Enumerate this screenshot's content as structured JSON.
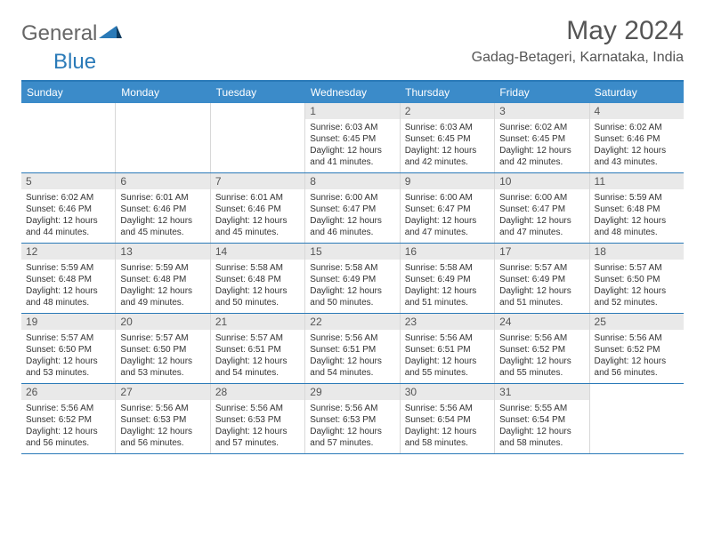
{
  "brand": {
    "part1": "General",
    "part2": "Blue"
  },
  "title": "May 2024",
  "location": "Gadag-Betageri, Karnataka, India",
  "colors": {
    "header_bg": "#3b8bc9",
    "border": "#2a7ab8",
    "daynum_bg": "#e9e9e9",
    "text": "#555555"
  },
  "day_names": [
    "Sunday",
    "Monday",
    "Tuesday",
    "Wednesday",
    "Thursday",
    "Friday",
    "Saturday"
  ],
  "weeks": [
    [
      {
        "empty": true
      },
      {
        "empty": true
      },
      {
        "empty": true
      },
      {
        "day": "1",
        "sunrise": "Sunrise: 6:03 AM",
        "sunset": "Sunset: 6:45 PM",
        "daylight1": "Daylight: 12 hours",
        "daylight2": "and 41 minutes."
      },
      {
        "day": "2",
        "sunrise": "Sunrise: 6:03 AM",
        "sunset": "Sunset: 6:45 PM",
        "daylight1": "Daylight: 12 hours",
        "daylight2": "and 42 minutes."
      },
      {
        "day": "3",
        "sunrise": "Sunrise: 6:02 AM",
        "sunset": "Sunset: 6:45 PM",
        "daylight1": "Daylight: 12 hours",
        "daylight2": "and 42 minutes."
      },
      {
        "day": "4",
        "sunrise": "Sunrise: 6:02 AM",
        "sunset": "Sunset: 6:46 PM",
        "daylight1": "Daylight: 12 hours",
        "daylight2": "and 43 minutes."
      }
    ],
    [
      {
        "day": "5",
        "sunrise": "Sunrise: 6:02 AM",
        "sunset": "Sunset: 6:46 PM",
        "daylight1": "Daylight: 12 hours",
        "daylight2": "and 44 minutes."
      },
      {
        "day": "6",
        "sunrise": "Sunrise: 6:01 AM",
        "sunset": "Sunset: 6:46 PM",
        "daylight1": "Daylight: 12 hours",
        "daylight2": "and 45 minutes."
      },
      {
        "day": "7",
        "sunrise": "Sunrise: 6:01 AM",
        "sunset": "Sunset: 6:46 PM",
        "daylight1": "Daylight: 12 hours",
        "daylight2": "and 45 minutes."
      },
      {
        "day": "8",
        "sunrise": "Sunrise: 6:00 AM",
        "sunset": "Sunset: 6:47 PM",
        "daylight1": "Daylight: 12 hours",
        "daylight2": "and 46 minutes."
      },
      {
        "day": "9",
        "sunrise": "Sunrise: 6:00 AM",
        "sunset": "Sunset: 6:47 PM",
        "daylight1": "Daylight: 12 hours",
        "daylight2": "and 47 minutes."
      },
      {
        "day": "10",
        "sunrise": "Sunrise: 6:00 AM",
        "sunset": "Sunset: 6:47 PM",
        "daylight1": "Daylight: 12 hours",
        "daylight2": "and 47 minutes."
      },
      {
        "day": "11",
        "sunrise": "Sunrise: 5:59 AM",
        "sunset": "Sunset: 6:48 PM",
        "daylight1": "Daylight: 12 hours",
        "daylight2": "and 48 minutes."
      }
    ],
    [
      {
        "day": "12",
        "sunrise": "Sunrise: 5:59 AM",
        "sunset": "Sunset: 6:48 PM",
        "daylight1": "Daylight: 12 hours",
        "daylight2": "and 48 minutes."
      },
      {
        "day": "13",
        "sunrise": "Sunrise: 5:59 AM",
        "sunset": "Sunset: 6:48 PM",
        "daylight1": "Daylight: 12 hours",
        "daylight2": "and 49 minutes."
      },
      {
        "day": "14",
        "sunrise": "Sunrise: 5:58 AM",
        "sunset": "Sunset: 6:48 PM",
        "daylight1": "Daylight: 12 hours",
        "daylight2": "and 50 minutes."
      },
      {
        "day": "15",
        "sunrise": "Sunrise: 5:58 AM",
        "sunset": "Sunset: 6:49 PM",
        "daylight1": "Daylight: 12 hours",
        "daylight2": "and 50 minutes."
      },
      {
        "day": "16",
        "sunrise": "Sunrise: 5:58 AM",
        "sunset": "Sunset: 6:49 PM",
        "daylight1": "Daylight: 12 hours",
        "daylight2": "and 51 minutes."
      },
      {
        "day": "17",
        "sunrise": "Sunrise: 5:57 AM",
        "sunset": "Sunset: 6:49 PM",
        "daylight1": "Daylight: 12 hours",
        "daylight2": "and 51 minutes."
      },
      {
        "day": "18",
        "sunrise": "Sunrise: 5:57 AM",
        "sunset": "Sunset: 6:50 PM",
        "daylight1": "Daylight: 12 hours",
        "daylight2": "and 52 minutes."
      }
    ],
    [
      {
        "day": "19",
        "sunrise": "Sunrise: 5:57 AM",
        "sunset": "Sunset: 6:50 PM",
        "daylight1": "Daylight: 12 hours",
        "daylight2": "and 53 minutes."
      },
      {
        "day": "20",
        "sunrise": "Sunrise: 5:57 AM",
        "sunset": "Sunset: 6:50 PM",
        "daylight1": "Daylight: 12 hours",
        "daylight2": "and 53 minutes."
      },
      {
        "day": "21",
        "sunrise": "Sunrise: 5:57 AM",
        "sunset": "Sunset: 6:51 PM",
        "daylight1": "Daylight: 12 hours",
        "daylight2": "and 54 minutes."
      },
      {
        "day": "22",
        "sunrise": "Sunrise: 5:56 AM",
        "sunset": "Sunset: 6:51 PM",
        "daylight1": "Daylight: 12 hours",
        "daylight2": "and 54 minutes."
      },
      {
        "day": "23",
        "sunrise": "Sunrise: 5:56 AM",
        "sunset": "Sunset: 6:51 PM",
        "daylight1": "Daylight: 12 hours",
        "daylight2": "and 55 minutes."
      },
      {
        "day": "24",
        "sunrise": "Sunrise: 5:56 AM",
        "sunset": "Sunset: 6:52 PM",
        "daylight1": "Daylight: 12 hours",
        "daylight2": "and 55 minutes."
      },
      {
        "day": "25",
        "sunrise": "Sunrise: 5:56 AM",
        "sunset": "Sunset: 6:52 PM",
        "daylight1": "Daylight: 12 hours",
        "daylight2": "and 56 minutes."
      }
    ],
    [
      {
        "day": "26",
        "sunrise": "Sunrise: 5:56 AM",
        "sunset": "Sunset: 6:52 PM",
        "daylight1": "Daylight: 12 hours",
        "daylight2": "and 56 minutes."
      },
      {
        "day": "27",
        "sunrise": "Sunrise: 5:56 AM",
        "sunset": "Sunset: 6:53 PM",
        "daylight1": "Daylight: 12 hours",
        "daylight2": "and 56 minutes."
      },
      {
        "day": "28",
        "sunrise": "Sunrise: 5:56 AM",
        "sunset": "Sunset: 6:53 PM",
        "daylight1": "Daylight: 12 hours",
        "daylight2": "and 57 minutes."
      },
      {
        "day": "29",
        "sunrise": "Sunrise: 5:56 AM",
        "sunset": "Sunset: 6:53 PM",
        "daylight1": "Daylight: 12 hours",
        "daylight2": "and 57 minutes."
      },
      {
        "day": "30",
        "sunrise": "Sunrise: 5:56 AM",
        "sunset": "Sunset: 6:54 PM",
        "daylight1": "Daylight: 12 hours",
        "daylight2": "and 58 minutes."
      },
      {
        "day": "31",
        "sunrise": "Sunrise: 5:55 AM",
        "sunset": "Sunset: 6:54 PM",
        "daylight1": "Daylight: 12 hours",
        "daylight2": "and 58 minutes."
      },
      {
        "empty": true
      }
    ]
  ]
}
